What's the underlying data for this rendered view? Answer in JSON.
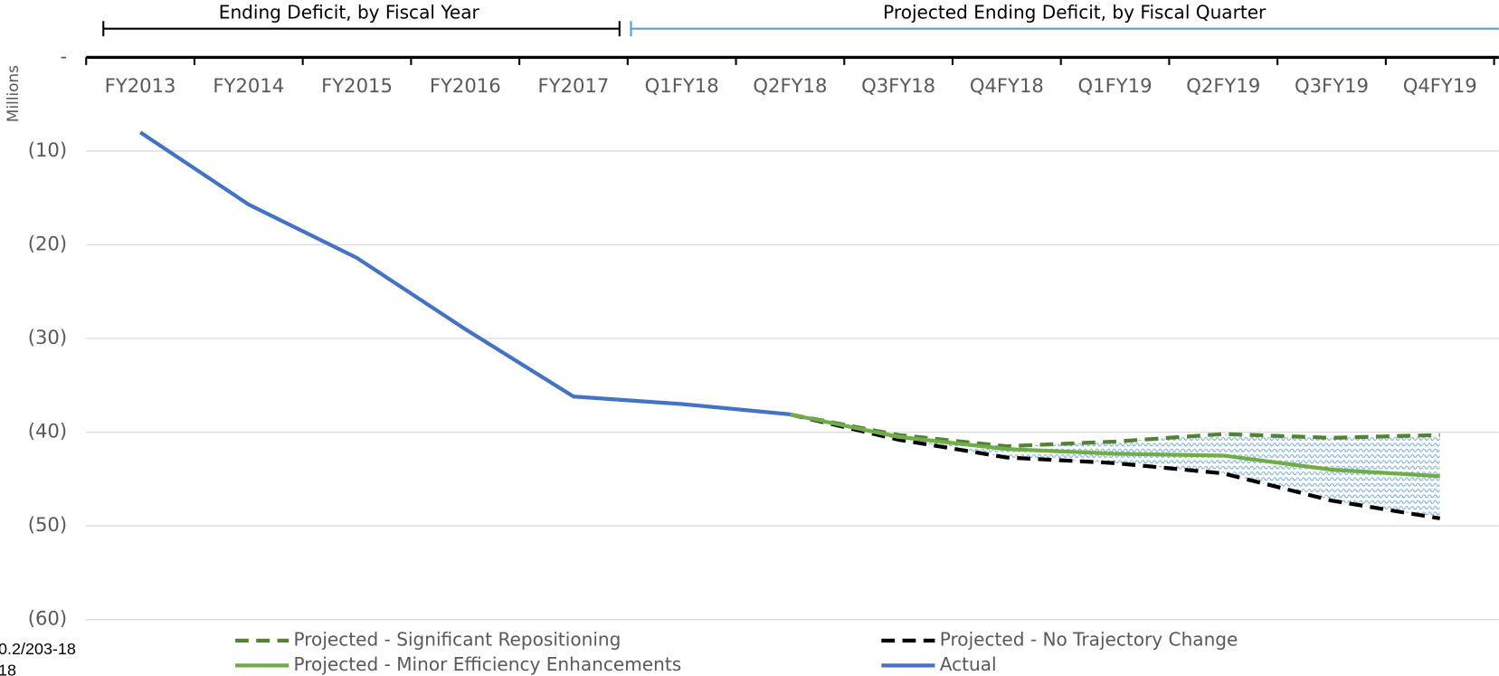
{
  "chart_data": {
    "type": "line",
    "y_axis_label": "Millions",
    "annotations": [
      "Ending Deficit, by Fiscal Year",
      "Projected Ending Deficit, by Fiscal Quarter"
    ],
    "footnotes": [
      "0.2/203-18",
      "18"
    ],
    "categories": [
      "FY2013",
      "FY2014",
      "FY2015",
      "FY2016",
      "FY2017",
      "Q1FY18",
      "Q2FY18",
      "Q3FY18",
      "Q4FY18",
      "Q1FY19",
      "Q2FY19",
      "Q3FY19",
      "Q4FY19"
    ],
    "series": [
      {
        "name": "Projected - Significant Repositioning",
        "color": "#548235",
        "dash": true,
        "values": [
          null,
          null,
          null,
          null,
          null,
          null,
          -38.1,
          -40.3,
          -41.5,
          -41.0,
          -40.2,
          -40.6,
          -40.3
        ]
      },
      {
        "name": "Projected - No Trajectory Change",
        "color": "#000000",
        "dash": true,
        "values": [
          null,
          null,
          null,
          null,
          null,
          null,
          -38.1,
          -40.8,
          -42.7,
          -43.3,
          -44.4,
          -47.3,
          -49.2
        ]
      },
      {
        "name": "Projected - Minor Efficiency Enhancements",
        "color": "#70ad47",
        "dash": false,
        "values": [
          null,
          null,
          null,
          null,
          null,
          null,
          -38.1,
          -40.5,
          -41.8,
          -42.3,
          -42.5,
          -44.0,
          -44.7
        ]
      },
      {
        "name": "Actual",
        "color": "#4472c4",
        "dash": false,
        "values": [
          -8.0,
          -15.7,
          -21.4,
          -29.0,
          -36.2,
          -37.0,
          -38.1,
          null,
          null,
          null,
          null,
          null,
          null
        ]
      }
    ],
    "ylim": [
      -60,
      0
    ],
    "yticks": [
      {
        "value": 0,
        "label": "-"
      },
      {
        "value": -10,
        "label": "(10)"
      },
      {
        "value": -20,
        "label": "(20)"
      },
      {
        "value": -30,
        "label": "(30)"
      },
      {
        "value": -40,
        "label": "(40)"
      },
      {
        "value": -50,
        "label": "(50)"
      },
      {
        "value": -60,
        "label": "(60)"
      }
    ],
    "grid": true,
    "legend": "bottom"
  }
}
